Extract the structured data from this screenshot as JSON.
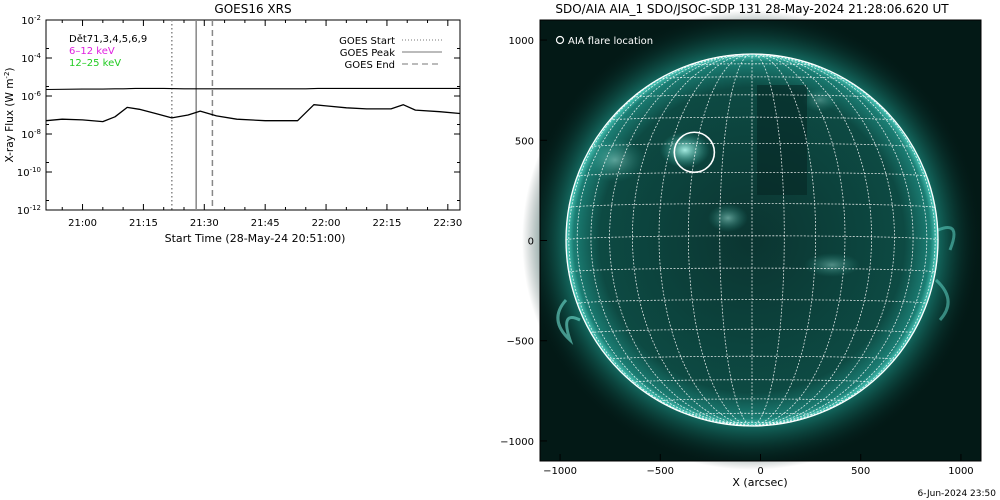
{
  "left_panel": {
    "title": "GOES16 XRS",
    "ylabel_main": "X-ray Flux (W m",
    "ylabel_sup": "-2",
    "ylabel_close": ")",
    "xlabel": "Start Time (28-May-24 20:51:00)",
    "legend_left": [
      {
        "text": "Dět71,3,4,5,6,9",
        "color": "#000000"
      },
      {
        "text": "6–12 keV",
        "color": "#e020e0"
      },
      {
        "text": "12–25 keV",
        "color": "#22cc22"
      }
    ],
    "legend_right": [
      {
        "text": "GOES Start",
        "style": "dotted"
      },
      {
        "text": "GOES Peak",
        "style": "solid"
      },
      {
        "text": "GOES End",
        "style": "dashed"
      }
    ]
  },
  "right_panel": {
    "title": "SDO/AIA AIA_1 SDO/JSOC-SDP 131 28-May-2024 21:28:06.620 UT",
    "legend": "AIA flare location",
    "xlabel": "X (arcsec)",
    "footer": "6-Jun-2024 23:50",
    "colors": {
      "sky": "#031a18",
      "disk": "#0a3c36",
      "limb": "#1b8b7f",
      "grid": "#ffffff"
    }
  },
  "chart_data": [
    {
      "type": "line",
      "title": "GOES16 XRS",
      "xlabel": "Start Time (28-May-24 20:51:00)",
      "ylabel": "X-ray Flux (W m-2)",
      "yscale": "log",
      "ylim": [
        1e-12,
        0.01
      ],
      "xlim_minutes_after_2051": [
        0,
        102
      ],
      "x_ticks": [
        "21:00",
        "21:15",
        "21:30",
        "21:45",
        "22:00",
        "22:15",
        "22:30"
      ],
      "y_ticks": [
        "10-12",
        "10-10",
        "10-8",
        "10-6",
        "10-4",
        "10-2"
      ],
      "series": [
        {
          "name": "6–12 keV",
          "x": [
            "20:51",
            "21:00",
            "21:05",
            "21:08",
            "21:10",
            "21:13",
            "21:16",
            "21:20",
            "21:25",
            "21:28",
            "21:32",
            "21:40",
            "21:48",
            "21:55",
            "21:58",
            "22:03",
            "22:10",
            "22:15",
            "22:20",
            "22:24",
            "22:28",
            "22:33"
          ],
          "y": [
            2.2e-06,
            2.3e-06,
            2.3e-06,
            2.4e-06,
            2.4e-06,
            2.5e-06,
            2.5e-06,
            2.5e-06,
            2.4e-06,
            2.4e-06,
            2.4e-06,
            2.4e-06,
            2.4e-06,
            2.4e-06,
            2.5e-06,
            2.5e-06,
            2.5e-06,
            2.5e-06,
            2.5e-06,
            2.5e-06,
            2.5e-06,
            2.5e-06
          ]
        },
        {
          "name": "12–25 keV",
          "x": [
            "20:51",
            "20:55",
            "21:00",
            "21:05",
            "21:08",
            "21:11",
            "21:14",
            "21:18",
            "21:22",
            "21:26",
            "21:29",
            "21:33",
            "21:38",
            "21:45",
            "21:53",
            "21:57",
            "22:00",
            "22:05",
            "22:10",
            "22:16",
            "22:19",
            "22:22",
            "22:28",
            "22:33"
          ],
          "y": [
            5e-08,
            6e-08,
            5.5e-08,
            4.5e-08,
            8e-08,
            2.5e-07,
            2e-07,
            1.2e-07,
            7e-08,
            1e-07,
            1.6e-07,
            9e-08,
            6e-08,
            5e-08,
            5e-08,
            3.5e-07,
            3e-07,
            2.4e-07,
            2.1e-07,
            2.1e-07,
            3.5e-07,
            1.8e-07,
            1.5e-07,
            1.2e-07
          ]
        }
      ],
      "markers": {
        "start": "21:22",
        "peak": "21:28",
        "end": "21:32"
      }
    },
    {
      "type": "scatter",
      "title": "SDO/AIA AIA_1 SDO/JSOC-SDP 131 28-May-2024 21:28:06.620 UT",
      "xlabel": "X (arcsec)",
      "xlim": [
        -1100,
        1100
      ],
      "ylim": [
        -1100,
        1100
      ],
      "x_ticks": [
        "−1000",
        "−500",
        "0",
        "500",
        "1000"
      ],
      "y_ticks": [
        "1000",
        "500",
        "0",
        "−500",
        "−1000"
      ],
      "series": [
        {
          "name": "AIA flare location",
          "x": [
            -330
          ],
          "y": [
            440
          ]
        }
      ]
    }
  ]
}
